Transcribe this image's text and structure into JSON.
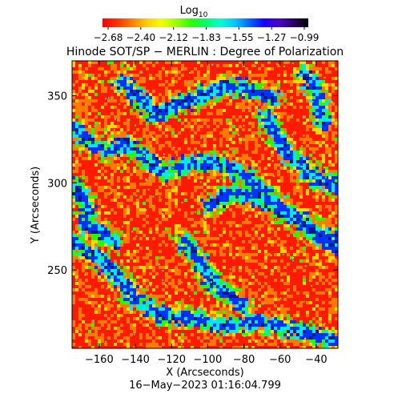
{
  "colorbar": {
    "label_main": "Log",
    "label_sub": "10",
    "ticks": [
      "−2.68",
      "−2.40",
      "−2.12",
      "−1.83",
      "−1.55",
      "−1.27",
      "−0.99"
    ],
    "colors": [
      "#ff0000",
      "#ff3300",
      "#ff7f00",
      "#ffcc00",
      "#f2ff00",
      "#9cff00",
      "#2bff00",
      "#00ff6a",
      "#00ffd0",
      "#00c8ff",
      "#0066ff",
      "#1a00ff",
      "#4b00c8",
      "#2a0060",
      "#000000"
    ]
  },
  "title": "Hinode SOT/SP − MERLIN : Degree of Polarization",
  "axes": {
    "x_label": "X (Arcseconds)",
    "y_label": "Y (Arcseconds)",
    "x_ticks": [
      "−160",
      "−140",
      "−120",
      "−100",
      "−80",
      "−60",
      "−40"
    ],
    "x_tick_values": [
      -160,
      -140,
      -120,
      -100,
      -80,
      -60,
      -40
    ],
    "y_ticks": [
      "350",
      "300",
      "250"
    ],
    "y_tick_values": [
      350,
      300,
      250
    ],
    "x_range": [
      -175,
      -28
    ],
    "y_range": [
      205,
      370
    ]
  },
  "map": {
    "colors": {
      "red": "#ff1a00",
      "orange": "#ff7a00",
      "yellow": "#ffd800",
      "green": "#22ff00",
      "cyan": "#00e8ff",
      "blue": "#0033ff",
      "navy": "#0a1a80"
    }
  },
  "timestamp": "16−May−2023 01:16:04.799"
}
